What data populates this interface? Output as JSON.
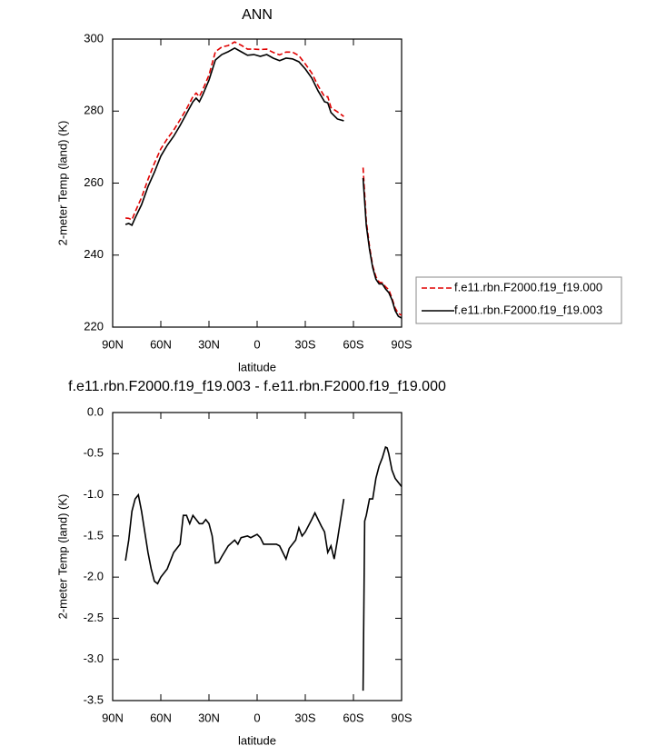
{
  "chart_data": [
    {
      "type": "line",
      "title": "ANN",
      "xlabel": "latitude",
      "ylabel": "2-meter Temp (land) (K)",
      "x": [
        82,
        80,
        78,
        76,
        72,
        68,
        64,
        60,
        56,
        52,
        48,
        44,
        40,
        38,
        36,
        34,
        30,
        26,
        22,
        18,
        14,
        10,
        6,
        2,
        -2,
        -6,
        -10,
        -14,
        -18,
        -22,
        -26,
        -30,
        -34,
        -38,
        -42,
        -44,
        -46,
        -50,
        -54,
        -60,
        -66,
        -68,
        -70,
        -72,
        -74,
        -76,
        -78,
        -80,
        -82,
        -84,
        -86,
        -88,
        -90
      ],
      "series": [
        {
          "name": "f.e11.rbn.F2000.f19_f19.000",
          "color": "#e00000",
          "dashed": true,
          "values": [
            250.3,
            250.2,
            249.8,
            252,
            256,
            261,
            265.5,
            269.5,
            272.3,
            274.7,
            277.6,
            280.6,
            284,
            285,
            284,
            285.8,
            290,
            296.5,
            297.8,
            298.2,
            299.2,
            298.3,
            297.2,
            297.2,
            297.1,
            297.2,
            296.3,
            295.6,
            296.4,
            296.4,
            295.4,
            293.1,
            290.6,
            287,
            284,
            284,
            281,
            279.8,
            278.5,
            null,
            264.3,
            249.5,
            242.4,
            237,
            234,
            232.5,
            232.3,
            231.2,
            230.4,
            228,
            225.3,
            223.8,
            223.3
          ]
        },
        {
          "name": "f.e11.rbn.F2000.f19_f19.003",
          "color": "#000000",
          "dashed": false,
          "values": [
            248.5,
            248.8,
            248.3,
            250.3,
            254,
            259,
            263,
            267.5,
            270.5,
            273,
            276,
            279.3,
            282.6,
            283.6,
            282.6,
            284.4,
            288.6,
            294.2,
            295.7,
            296.5,
            297.5,
            296.5,
            295.5,
            295.7,
            295.2,
            295.7,
            294.7,
            294,
            294.7,
            294.5,
            293.7,
            291.7,
            289.2,
            285.6,
            282.6,
            282.3,
            279.6,
            277.8,
            277.3,
            null,
            261.4,
            248.3,
            241.6,
            236.5,
            233.3,
            232,
            232,
            230.6,
            229.6,
            227.6,
            224.6,
            223,
            222.5
          ]
        }
      ],
      "xlim": [
        90,
        -90
      ],
      "xticks": [
        {
          "value": 90,
          "label": "90N"
        },
        {
          "value": 60,
          "label": "60N"
        },
        {
          "value": 30,
          "label": "30N"
        },
        0,
        {
          "value": -30,
          "label": "30S"
        },
        {
          "value": -60,
          "label": "60S"
        },
        {
          "value": -90,
          "label": "90S"
        }
      ],
      "ylim": [
        220,
        300
      ],
      "yticks": [
        220,
        240,
        260,
        280,
        300
      ],
      "legend": "right",
      "grid": false
    },
    {
      "type": "line",
      "title": "f.e11.rbn.F2000.f19_f19.003 - f.e11.rbn.F2000.f19_f19.000",
      "xlabel": "latitude",
      "ylabel": "2-meter Temp (land) (K)",
      "x": [
        82,
        80,
        78,
        76,
        74,
        72,
        70,
        68,
        66,
        64,
        62,
        60,
        56,
        52,
        48,
        46,
        44,
        42,
        40,
        38,
        36,
        34,
        32,
        30,
        28,
        26,
        24,
        22,
        18,
        14,
        12,
        10,
        6,
        4,
        2,
        0,
        -2,
        -4,
        -8,
        -12,
        -14,
        -16,
        -18,
        -20,
        -24,
        -26,
        -28,
        -30,
        -34,
        -36,
        -38,
        -40,
        -42,
        -44,
        -46,
        -48,
        -50,
        -54,
        -60,
        -66,
        -67,
        -68,
        -70,
        -72,
        -74,
        -76,
        -78,
        -80,
        -81,
        -82,
        -84,
        -86,
        -88,
        -90
      ],
      "values": [
        -1.8,
        -1.55,
        -1.2,
        -1.05,
        -1.0,
        -1.2,
        -1.45,
        -1.7,
        -1.9,
        -2.05,
        -2.08,
        -2.0,
        -1.9,
        -1.7,
        -1.6,
        -1.25,
        -1.25,
        -1.35,
        -1.25,
        -1.3,
        -1.35,
        -1.35,
        -1.3,
        -1.35,
        -1.5,
        -1.83,
        -1.82,
        -1.75,
        -1.62,
        -1.55,
        -1.6,
        -1.52,
        -1.5,
        -1.52,
        -1.5,
        -1.48,
        -1.52,
        -1.6,
        -1.6,
        -1.6,
        -1.62,
        -1.7,
        -1.78,
        -1.65,
        -1.55,
        -1.4,
        -1.5,
        -1.45,
        -1.3,
        -1.22,
        -1.3,
        -1.38,
        -1.45,
        -1.7,
        -1.62,
        -1.78,
        -1.55,
        -1.05,
        null,
        -3.38,
        -1.32,
        -1.25,
        -1.05,
        -1.05,
        -0.8,
        -0.65,
        -0.55,
        -0.42,
        -0.43,
        -0.5,
        -0.7,
        -0.8,
        -0.85,
        -0.9
      ],
      "color": "#000000",
      "xlim": [
        90,
        -90
      ],
      "xticks": [
        {
          "value": 90,
          "label": "90N"
        },
        {
          "value": 60,
          "label": "60N"
        },
        {
          "value": 30,
          "label": "30N"
        },
        0,
        {
          "value": -30,
          "label": "30S"
        },
        {
          "value": -60,
          "label": "60S"
        },
        {
          "value": -90,
          "label": "90S"
        }
      ],
      "ylim": [
        -3.5,
        0
      ],
      "yticks": [
        -3.5,
        {
          "value": -3,
          "label": "-3.0"
        },
        -2.5,
        {
          "value": -2,
          "label": "-2.0"
        },
        -1.5,
        {
          "value": -1,
          "label": "-1.0"
        },
        -0.5,
        {
          "value": 0,
          "label": "0.0"
        }
      ],
      "grid": false
    }
  ]
}
